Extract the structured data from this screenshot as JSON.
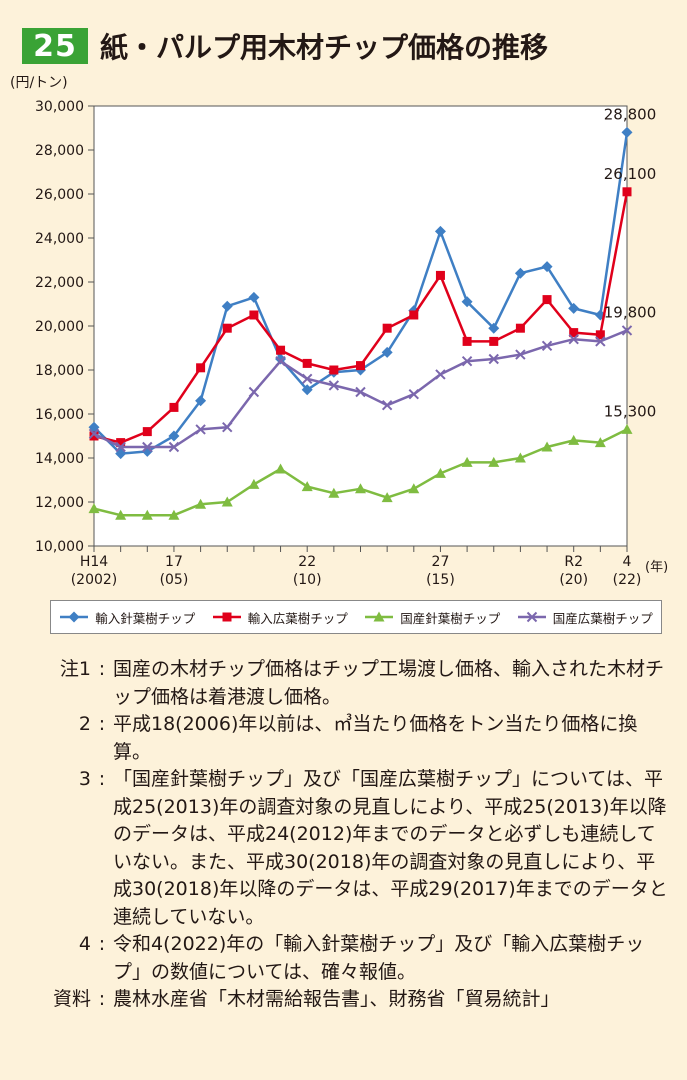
{
  "figure": {
    "number": "25",
    "title": "紙・パルプ用木材チップ価格の推移"
  },
  "chart_data": {
    "type": "line",
    "title": "紙・パルプ用木材チップ価格の推移",
    "ylabel": "(円/トン)",
    "xlabel": "(年)",
    "ylim": [
      10000,
      30000
    ],
    "yticks": [
      10000,
      12000,
      14000,
      16000,
      18000,
      20000,
      22000,
      24000,
      26000,
      28000,
      30000
    ],
    "ytick_labels": [
      "10,000",
      "12,000",
      "14,000",
      "16,000",
      "18,000",
      "20,000",
      "22,000",
      "24,000",
      "26,000",
      "28,000",
      "30,000"
    ],
    "x": [
      2002,
      2003,
      2004,
      2005,
      2006,
      2007,
      2008,
      2009,
      2010,
      2011,
      2012,
      2013,
      2014,
      2015,
      2016,
      2017,
      2018,
      2019,
      2020,
      2021,
      2022
    ],
    "xticks": [
      {
        "x": 2002,
        "line1": "H14",
        "line2": "(2002)"
      },
      {
        "x": 2005,
        "line1": "17",
        "line2": "(05)"
      },
      {
        "x": 2010,
        "line1": "22",
        "line2": "(10)"
      },
      {
        "x": 2015,
        "line1": "27",
        "line2": "(15)"
      },
      {
        "x": 2020,
        "line1": "R2",
        "line2": "(20)"
      },
      {
        "x": 2022,
        "line1": "4",
        "line2": "(22)"
      }
    ],
    "series": [
      {
        "name": "輸入針葉樹チップ",
        "color": "#3f7fc4",
        "marker": "diamond",
        "values": [
          15400,
          14200,
          14300,
          15000,
          16600,
          20900,
          21300,
          18500,
          17100,
          17900,
          18000,
          18800,
          20700,
          24300,
          21100,
          19900,
          22400,
          22700,
          20800,
          20500,
          28800
        ]
      },
      {
        "name": "輸入広葉樹チップ",
        "color": "#e0001b",
        "marker": "square",
        "values": [
          15000,
          14700,
          15200,
          16300,
          18100,
          19900,
          20500,
          18900,
          18300,
          18000,
          18200,
          19900,
          20500,
          22300,
          19300,
          19300,
          19900,
          21200,
          19700,
          19600,
          26100
        ]
      },
      {
        "name": "国産針葉樹チップ",
        "color": "#7fbc41",
        "marker": "triangle",
        "values": [
          11700,
          11400,
          11400,
          11400,
          11900,
          12000,
          12800,
          13500,
          12700,
          12400,
          12600,
          12200,
          12600,
          13300,
          13800,
          13800,
          14000,
          14500,
          14800,
          14700,
          15300
        ]
      },
      {
        "name": "国産広葉樹チップ",
        "color": "#7b67ad",
        "marker": "x",
        "values": [
          15100,
          14500,
          14500,
          14500,
          15300,
          15400,
          17000,
          18400,
          17600,
          17300,
          17000,
          16400,
          16900,
          17800,
          18400,
          18500,
          18700,
          19100,
          19400,
          19300,
          19800
        ]
      }
    ],
    "annotations": [
      {
        "series": 0,
        "text": "28,800"
      },
      {
        "series": 1,
        "text": "26,100"
      },
      {
        "series": 3,
        "text": "19,800"
      },
      {
        "series": 2,
        "text": "15,300"
      }
    ]
  },
  "notes": [
    {
      "label": "注1",
      "text": "国産の木材チップ価格はチップ工場渡し価格、輸入された木材チップ価格は着港渡し価格。"
    },
    {
      "label": "2",
      "text": "平成18(2006)年以前は、㎥当たり価格をトン当たり価格に換算。"
    },
    {
      "label": "3",
      "text": "「国産針葉樹チップ」及び「国産広葉樹チップ」については、平成25(2013)年の調査対象の見直しにより、平成25(2013)年以降のデータは、平成24(2012)年までのデータと必ずしも連続していない。また、平成30(2018)年の調査対象の見直しにより、平成30(2018)年以降のデータは、平成29(2017)年までのデータと連続していない。"
    },
    {
      "label": "4",
      "text": "令和4(2022)年の「輸入針葉樹チップ」及び「輸入広葉樹チップ」の数値については、確々報値。"
    },
    {
      "label": "資料",
      "text": "農林水産省「木材需給報告書」、財務省「貿易統計」"
    }
  ],
  "note_separator": ":"
}
